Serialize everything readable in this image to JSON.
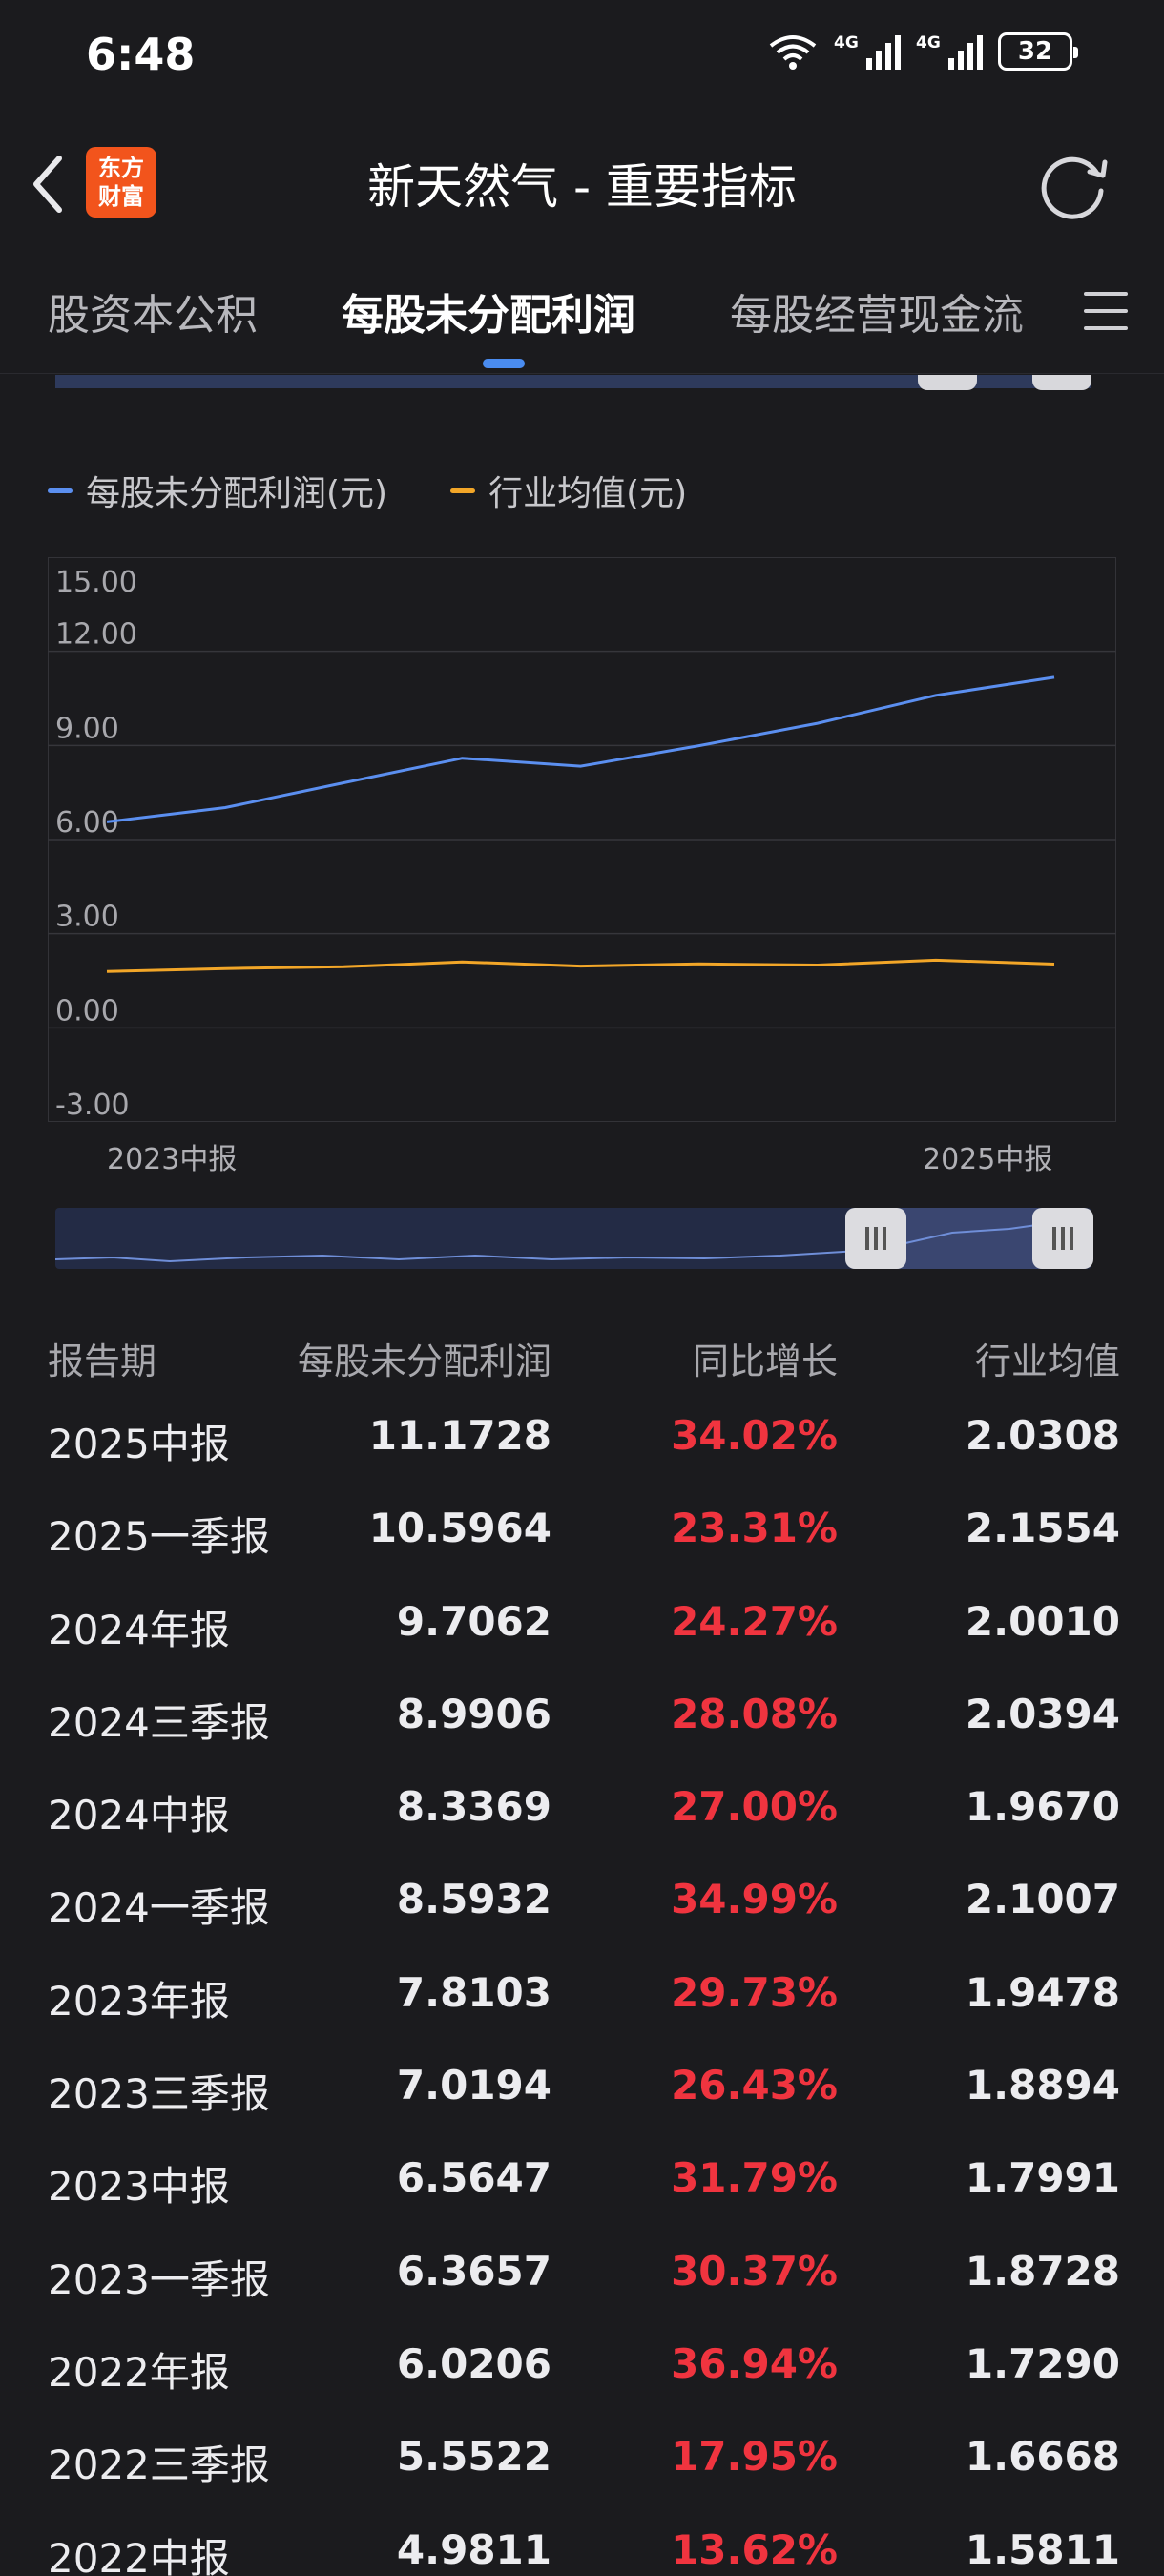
{
  "status_bar": {
    "time": "6:48",
    "network_1": "4G",
    "network_2": "4G",
    "battery": "32"
  },
  "header": {
    "logo_line1": "东方",
    "logo_line2": "财富",
    "title": "新天然气 - 重要指标"
  },
  "tabs": [
    {
      "label": "股资本公积"
    },
    {
      "label": "每股未分配利润",
      "active": true
    },
    {
      "label": "每股经营现金流"
    }
  ],
  "legend": {
    "series_1": "每股未分配利润(元)",
    "series_2": "行业均值(元)"
  },
  "chart_data": {
    "type": "line",
    "x": [
      "2023中报",
      "2023三季报",
      "2023年报",
      "2024一季报",
      "2024中报",
      "2024三季报",
      "2024年报",
      "2025一季报",
      "2025中报"
    ],
    "x_tick_labels": [
      "2023中报",
      "2025中报"
    ],
    "y_tick_labels": [
      "15.00",
      "12.00",
      "9.00",
      "6.00",
      "3.00",
      "0.00",
      "-3.00"
    ],
    "ylim": [
      -3,
      15
    ],
    "grid": true,
    "legend_position": "top-left",
    "series": [
      {
        "name": "每股未分配利润(元)",
        "color": "#5b8ff0",
        "values": [
          6.5647,
          7.0194,
          7.8103,
          8.5932,
          8.3369,
          8.9906,
          9.7062,
          10.5964,
          11.1728
        ]
      },
      {
        "name": "行业均值(元)",
        "color": "#f2a628",
        "values": [
          1.7991,
          1.8894,
          1.9478,
          2.1007,
          1.967,
          2.0394,
          2.001,
          2.1554,
          2.0308
        ]
      }
    ]
  },
  "table": {
    "headers": [
      "报告期",
      "每股未分配利润",
      "同比增长",
      "行业均值"
    ],
    "rows": [
      [
        "2025中报",
        "11.1728",
        "34.02%",
        "2.0308"
      ],
      [
        "2025一季报",
        "10.5964",
        "23.31%",
        "2.1554"
      ],
      [
        "2024年报",
        "9.7062",
        "24.27%",
        "2.0010"
      ],
      [
        "2024三季报",
        "8.9906",
        "28.08%",
        "2.0394"
      ],
      [
        "2024中报",
        "8.3369",
        "27.00%",
        "1.9670"
      ],
      [
        "2024一季报",
        "8.5932",
        "34.99%",
        "2.1007"
      ],
      [
        "2023年报",
        "7.8103",
        "29.73%",
        "1.9478"
      ],
      [
        "2023三季报",
        "7.0194",
        "26.43%",
        "1.8894"
      ],
      [
        "2023中报",
        "6.5647",
        "31.79%",
        "1.7991"
      ],
      [
        "2023一季报",
        "6.3657",
        "30.37%",
        "1.8728"
      ],
      [
        "2022年报",
        "6.0206",
        "36.94%",
        "1.7290"
      ],
      [
        "2022三季报",
        "5.5522",
        "17.95%",
        "1.6668"
      ],
      [
        "2022中报",
        "4.9811",
        "13.62%",
        "1.5811"
      ]
    ]
  },
  "colors": {
    "background": "#1b1b1e",
    "positive_growth": "#f0343f",
    "accent_blue": "#4a8cf0",
    "accent_orange": "#f2a628"
  }
}
